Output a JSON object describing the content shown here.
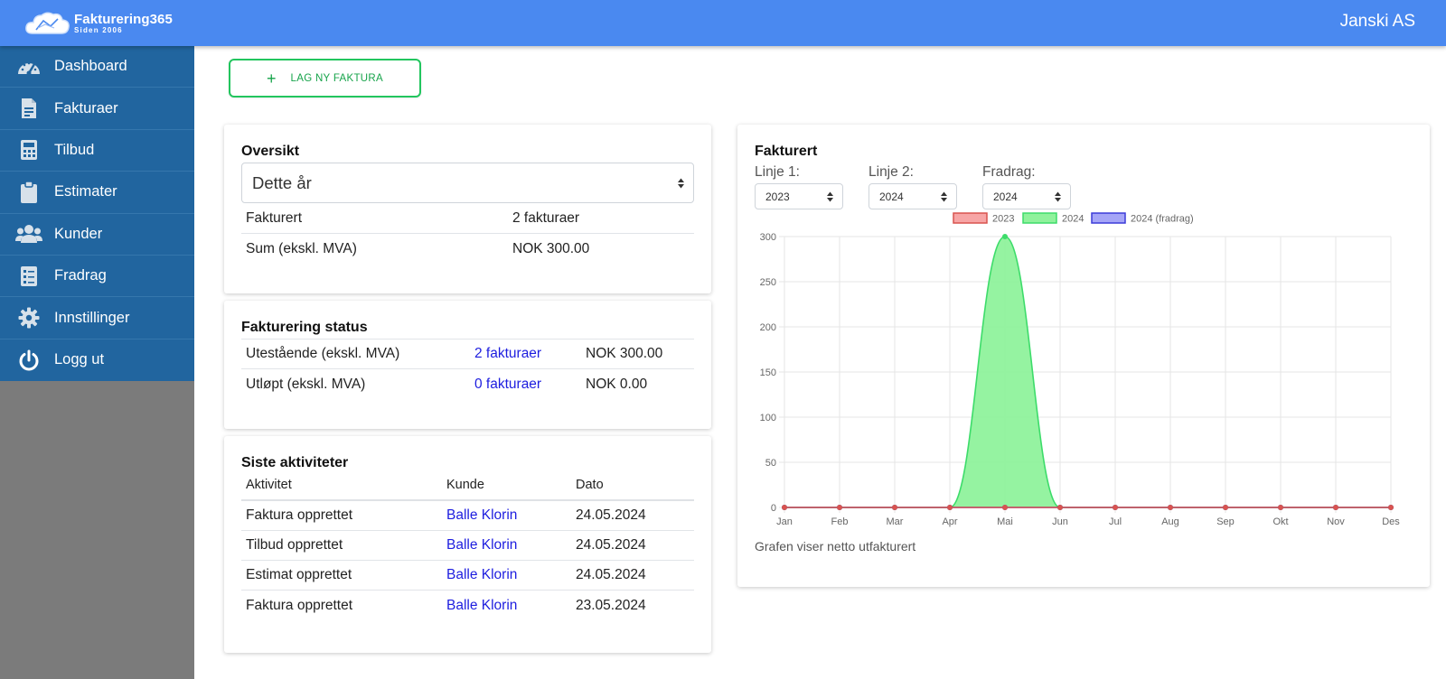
{
  "brand": {
    "name": "Fakturering365",
    "since": "Siden 2006"
  },
  "header": {
    "company": "Janski AS"
  },
  "sidebar": {
    "items": [
      {
        "label": "Dashboard",
        "icon": "dashboard-icon"
      },
      {
        "label": "Fakturaer",
        "icon": "invoice-icon"
      },
      {
        "label": "Tilbud",
        "icon": "calculator-icon"
      },
      {
        "label": "Estimater",
        "icon": "clipboard-icon"
      },
      {
        "label": "Kunder",
        "icon": "users-icon"
      },
      {
        "label": "Fradrag",
        "icon": "checklist-icon"
      },
      {
        "label": "Innstillinger",
        "icon": "gear-icon"
      },
      {
        "label": "Logg ut",
        "icon": "power-icon"
      }
    ]
  },
  "toolbar": {
    "new_invoice_label": "LAG NY FAKTURA",
    "new_invoice_icon": "plus-icon"
  },
  "overview": {
    "title": "Oversikt",
    "period_selected": "Dette år",
    "rows": [
      {
        "label": "Fakturert",
        "value": "2 fakturaer"
      },
      {
        "label": "Sum (ekskl. MVA)",
        "value": "NOK 300.00"
      }
    ]
  },
  "status": {
    "title": "Fakturering status",
    "rows": [
      {
        "label": "Utestående (ekskl. MVA)",
        "count": "2 fakturaer",
        "amount": "NOK 300.00"
      },
      {
        "label": "Utløpt (ekskl. MVA)",
        "count": "0 fakturaer",
        "amount": "NOK 0.00"
      }
    ]
  },
  "activities": {
    "title": "Siste aktiviteter",
    "headers": {
      "activity": "Aktivitet",
      "customer": "Kunde",
      "date": "Dato"
    },
    "rows": [
      {
        "activity": "Faktura opprettet",
        "customer": "Balle Klorin",
        "date": "24.05.2024"
      },
      {
        "activity": "Tilbud opprettet",
        "customer": "Balle Klorin",
        "date": "24.05.2024"
      },
      {
        "activity": "Estimat opprettet",
        "customer": "Balle Klorin",
        "date": "24.05.2024"
      },
      {
        "activity": "Faktura opprettet",
        "customer": "Balle Klorin",
        "date": "23.05.2024"
      }
    ]
  },
  "billing_chart": {
    "title": "Fakturert",
    "line1_label": "Linje 1:",
    "line1_selected": "2023",
    "line2_label": "Linje 2:",
    "line2_selected": "2024",
    "deduction_label": "Fradrag:",
    "deduction_selected": "2024",
    "footnote": "Grafen viser netto utfakturert"
  },
  "chart_data": {
    "type": "area",
    "categories": [
      "Jan",
      "Feb",
      "Mar",
      "Apr",
      "Mai",
      "Jun",
      "Jul",
      "Aug",
      "Sep",
      "Okt",
      "Nov",
      "Des"
    ],
    "series": [
      {
        "name": "2023",
        "values": [
          0,
          0,
          0,
          0,
          0,
          0,
          0,
          0,
          0,
          0,
          0,
          0
        ],
        "color": "#d9534f",
        "fill": "#f7a5a5"
      },
      {
        "name": "2024",
        "values": [
          0,
          0,
          0,
          0,
          300,
          0,
          0,
          0,
          0,
          0,
          0,
          0
        ],
        "color": "#3ddc6a",
        "fill": "#8ff29c"
      },
      {
        "name": "2024 (fradrag)",
        "values": [
          0,
          0,
          0,
          0,
          0,
          0,
          0,
          0,
          0,
          0,
          0,
          0
        ],
        "color": "#3b3bd9",
        "fill": "#a5a5f7"
      }
    ],
    "y_ticks": [
      "0",
      "50",
      "100",
      "150",
      "200",
      "250",
      "300"
    ],
    "ylim": [
      0,
      300
    ],
    "grid": true,
    "legend_position": "top"
  }
}
